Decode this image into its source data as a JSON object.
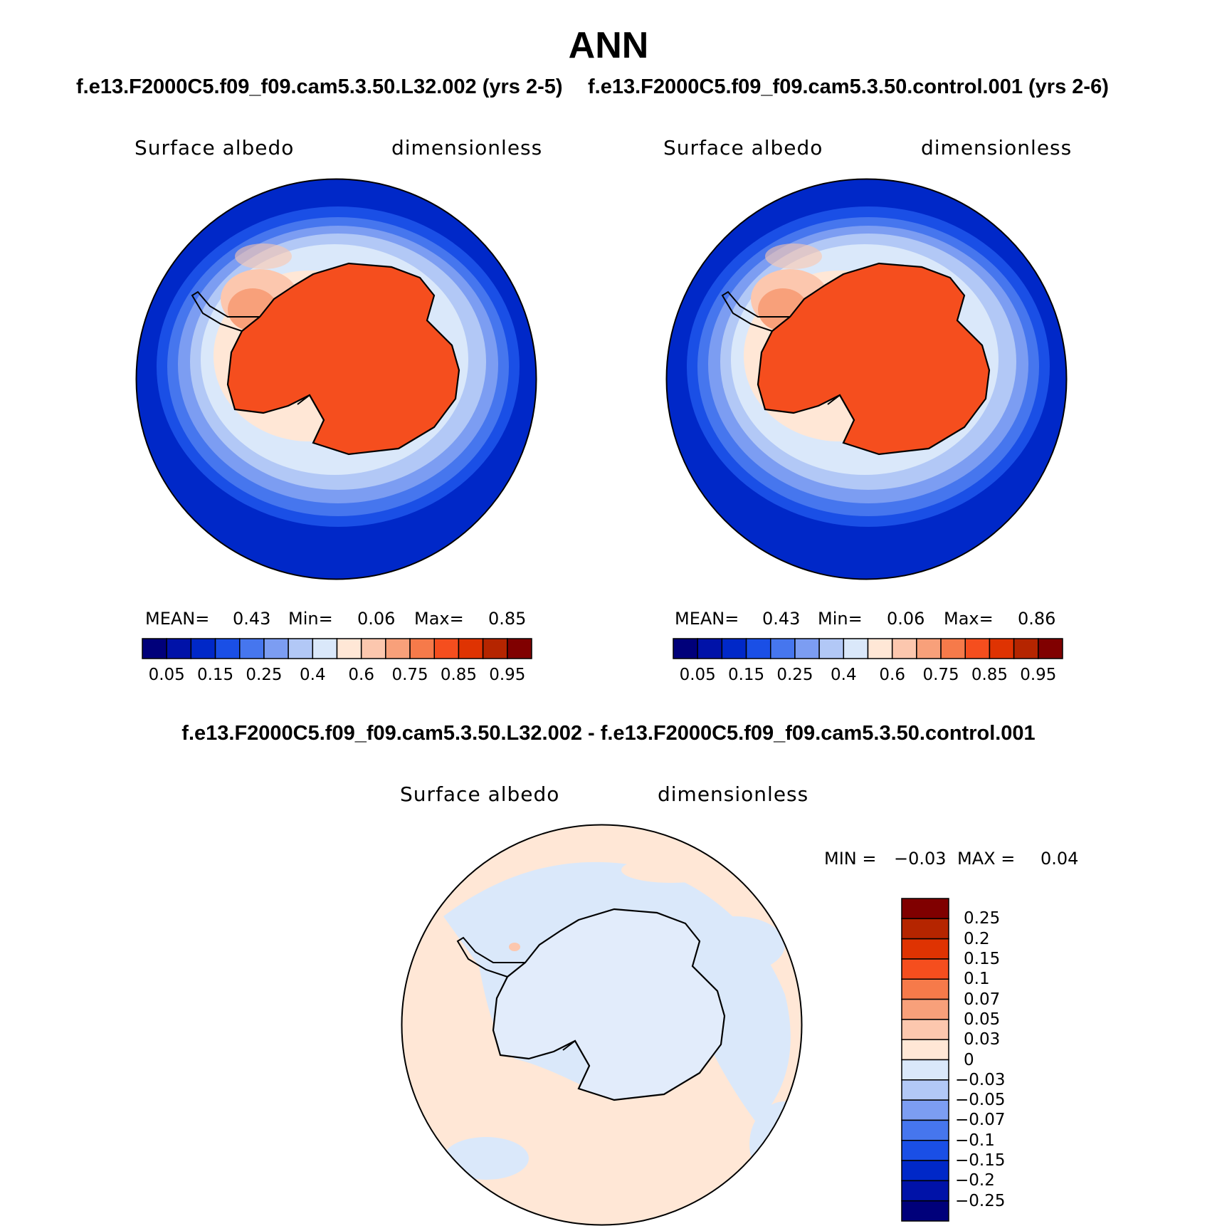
{
  "title": "ANN",
  "panels": [
    {
      "case_title": "f.e13.F2000C5.f09_f09.cam5.3.50.L32.002 (yrs 2-5)",
      "variable": "Surface albedo",
      "units": "dimensionless",
      "stats": {
        "mean_label": "MEAN=",
        "mean": "0.43",
        "min_label": "Min=",
        "min": "0.06",
        "max_label": "Max=",
        "max": "0.85"
      }
    },
    {
      "case_title": "f.e13.F2000C5.f09_f09.cam5.3.50.control.001 (yrs 2-6)",
      "variable": "Surface albedo",
      "units": "dimensionless",
      "stats": {
        "mean_label": "MEAN=",
        "mean": "0.43",
        "min_label": "Min=",
        "min": "0.06",
        "max_label": "Max=",
        "max": "0.86"
      }
    }
  ],
  "diff_panel": {
    "title": "f.e13.F2000C5.f09_f09.cam5.3.50.L32.002 - f.e13.F2000C5.f09_f09.cam5.3.50.control.001",
    "variable": "Surface albedo",
    "units": "dimensionless",
    "minmax": {
      "min_label": "MIN =",
      "min": "−0.03",
      "max_label": "MAX =",
      "max": "0.04"
    }
  },
  "colorbar_abs": {
    "colors": [
      "#00007a",
      "#0012a8",
      "#0028c8",
      "#1a4fe6",
      "#4676ee",
      "#7c9df2",
      "#b2c8f6",
      "#dae8fa",
      "#ffe7d6",
      "#fcc7ae",
      "#f8a07a",
      "#f67a4a",
      "#f54e1e",
      "#df3302",
      "#b52500",
      "#800000"
    ],
    "tick_labels": [
      "0.05",
      "0.15",
      "0.25",
      "0.4",
      "0.6",
      "0.75",
      "0.85",
      "0.95"
    ]
  },
  "colorbar_diff": {
    "colors": [
      "#800000",
      "#b52500",
      "#df3302",
      "#f54e1e",
      "#f67a4a",
      "#f8a07a",
      "#fcc7ae",
      "#ffe7d6",
      "#dae8fa",
      "#b2c8f6",
      "#7c9df2",
      "#4676ee",
      "#1a4fe6",
      "#0028c8",
      "#0012a8",
      "#00007a"
    ],
    "tick_labels": [
      "0.25",
      "0.2",
      "0.15",
      "0.1",
      "0.07",
      "0.05",
      "0.03",
      "0",
      "−0.03",
      "−0.05",
      "−0.07",
      "−0.1",
      "−0.15",
      "−0.2",
      "−0.25"
    ]
  }
}
